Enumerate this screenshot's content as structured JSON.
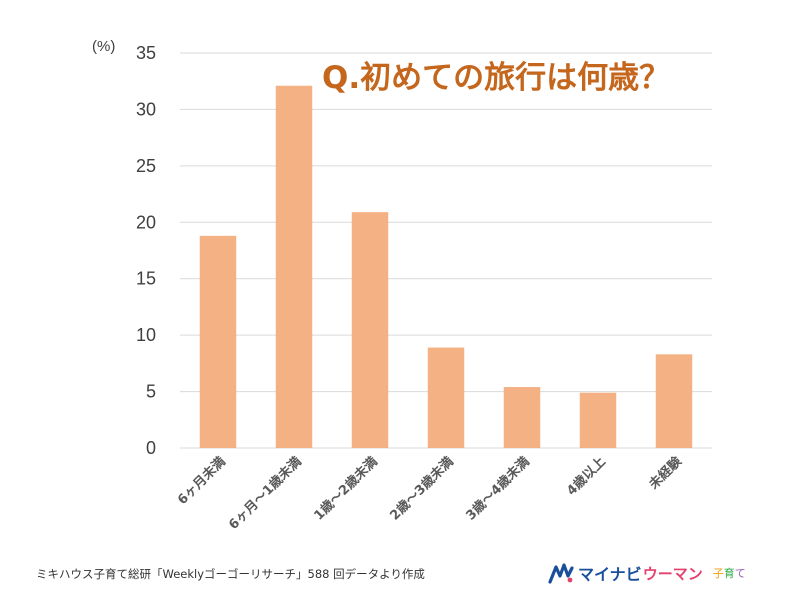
{
  "chart_data": {
    "type": "bar",
    "title": "Q.初めての旅行は何歳？",
    "ylabel": "(%)",
    "categories": [
      "6ヶ月未満",
      "6ヶ月～1歳未満",
      "1歳～2歳未満",
      "2歳～3歳未満",
      "3歳～4歳未満",
      "4歳以上",
      "未経験"
    ],
    "values": [
      18.8,
      32.1,
      20.9,
      8.9,
      5.4,
      4.9,
      8.3
    ],
    "ylim": [
      0,
      35
    ],
    "yticks": [
      "0",
      "5",
      "10",
      "15",
      "20",
      "25",
      "30",
      "35"
    ],
    "grid": true,
    "bar_color": "#f4b183",
    "grid_color": "#d9d9d9"
  },
  "source_note": "ミキハウス子育て総研「Weeklyゴーゴーリサーチ」588 回データより作成",
  "logo": {
    "main": "マイナビ",
    "sub": "ウーマン",
    "tag": "子育て",
    "main_color": "#1a4f9c",
    "sub_color": "#e5416d"
  }
}
